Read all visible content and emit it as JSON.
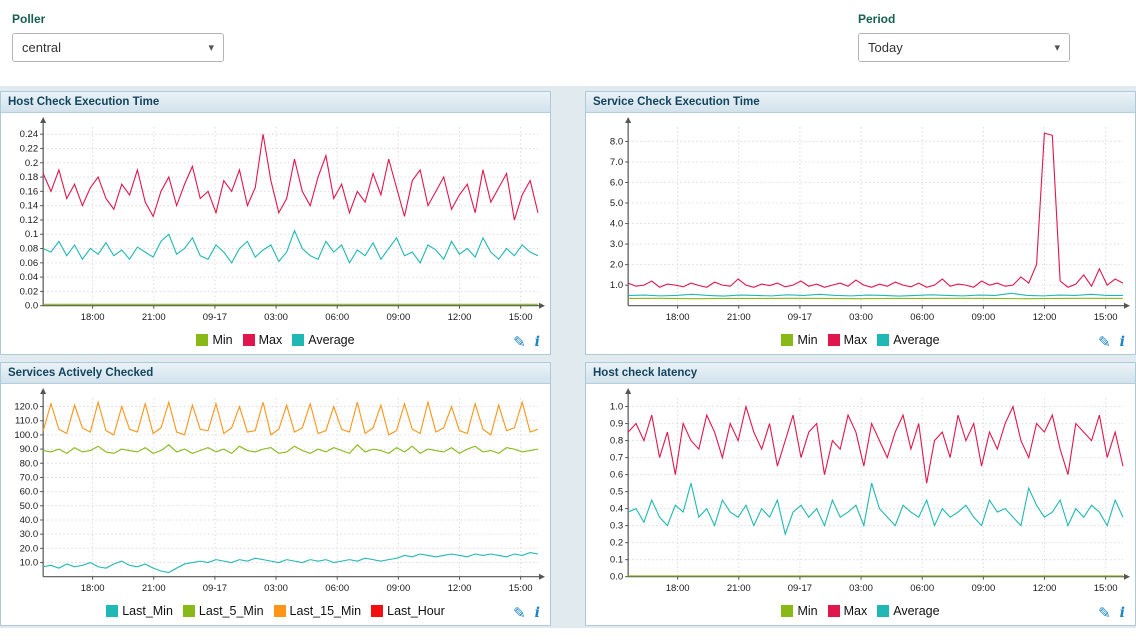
{
  "filters": {
    "poller": {
      "label": "Poller",
      "value": "central"
    },
    "period": {
      "label": "Period",
      "value": "Today"
    }
  },
  "icons": {
    "edit": "✎",
    "info": "i",
    "chevron": "▾"
  },
  "chart_data": [
    {
      "type": "line",
      "title": "Host Check Execution Time",
      "xtick_labels": [
        "18:00",
        "21:00",
        "09-17",
        "03:00",
        "06:00",
        "09:00",
        "12:00",
        "15:00"
      ],
      "ytick_values": [
        0,
        0.02,
        0.04,
        0.06,
        0.08,
        0.1,
        0.12,
        0.14,
        0.16,
        0.18,
        0.2,
        0.22,
        0.24
      ],
      "ytick_labels": [
        "0.0",
        "0.02",
        "0.04",
        "0.06",
        "0.08",
        "0.1",
        "0.12",
        "0.14",
        "0.16",
        "0.18",
        "0.2",
        "0.22",
        "0.24"
      ],
      "ylim": [
        0,
        0.25
      ],
      "grid": true,
      "legend_position": "bottom",
      "series": [
        {
          "name": "Min",
          "color": "#88b917",
          "values": [
            0.002,
            0.002
          ]
        },
        {
          "name": "Max",
          "color": "#e0174c",
          "values": [
            0.185,
            0.16,
            0.19,
            0.15,
            0.17,
            0.14,
            0.165,
            0.18,
            0.15,
            0.135,
            0.17,
            0.155,
            0.19,
            0.145,
            0.125,
            0.16,
            0.18,
            0.14,
            0.17,
            0.195,
            0.15,
            0.16,
            0.13,
            0.175,
            0.16,
            0.19,
            0.14,
            0.165,
            0.24,
            0.175,
            0.13,
            0.15,
            0.205,
            0.16,
            0.14,
            0.18,
            0.21,
            0.15,
            0.17,
            0.13,
            0.16,
            0.145,
            0.185,
            0.155,
            0.205,
            0.165,
            0.125,
            0.175,
            0.19,
            0.14,
            0.16,
            0.18,
            0.135,
            0.155,
            0.17,
            0.13,
            0.19,
            0.145,
            0.165,
            0.185,
            0.12,
            0.155,
            0.175,
            0.13
          ]
        },
        {
          "name": "Average",
          "color": "#20b8b4",
          "values": [
            0.08,
            0.075,
            0.09,
            0.07,
            0.085,
            0.065,
            0.08,
            0.072,
            0.088,
            0.07,
            0.078,
            0.065,
            0.082,
            0.075,
            0.068,
            0.09,
            0.1,
            0.072,
            0.08,
            0.095,
            0.07,
            0.065,
            0.085,
            0.075,
            0.06,
            0.08,
            0.09,
            0.068,
            0.078,
            0.085,
            0.062,
            0.075,
            0.105,
            0.08,
            0.07,
            0.065,
            0.09,
            0.075,
            0.085,
            0.06,
            0.078,
            0.07,
            0.088,
            0.065,
            0.08,
            0.095,
            0.07,
            0.075,
            0.06,
            0.085,
            0.078,
            0.065,
            0.09,
            0.072,
            0.08,
            0.068,
            0.095,
            0.075,
            0.065,
            0.08,
            0.07,
            0.085,
            0.075,
            0.07
          ]
        }
      ]
    },
    {
      "type": "line",
      "title": "Service Check Execution Time",
      "xtick_labels": [
        "18:00",
        "21:00",
        "09-17",
        "03:00",
        "06:00",
        "09:00",
        "12:00",
        "15:00"
      ],
      "ytick_values": [
        1,
        2,
        3,
        4,
        5,
        6,
        7,
        8
      ],
      "ytick_labels": [
        "1.0",
        "2.0",
        "3.0",
        "4.0",
        "5.0",
        "6.0",
        "7.0",
        "8.0"
      ],
      "ylim": [
        0,
        8.7
      ],
      "grid": true,
      "legend_position": "bottom",
      "series": [
        {
          "name": "Min",
          "color": "#88b917",
          "values": [
            0.35,
            0.36,
            0.34,
            0.35,
            0.35,
            0.36,
            0.35,
            0.34,
            0.35,
            0.35,
            0.36,
            0.35,
            0.34,
            0.35,
            0.36,
            0.35
          ]
        },
        {
          "name": "Max",
          "color": "#e0174c",
          "values": [
            1.1,
            0.95,
            1.0,
            1.2,
            0.9,
            1.05,
            1.0,
            0.92,
            1.1,
            0.98,
            0.9,
            1.15,
            1.0,
            0.95,
            1.3,
            1.0,
            0.9,
            1.05,
            0.98,
            1.1,
            0.92,
            1.0,
            1.2,
            0.95,
            1.05,
            0.9,
            1.0,
            1.1,
            0.95,
            1.25,
            1.0,
            0.9,
            1.05,
            0.95,
            1.15,
            1.0,
            0.92,
            1.1,
            0.9,
            1.0,
            1.3,
            0.95,
            1.05,
            1.0,
            0.9,
            1.2,
            1.0,
            1.1,
            0.95,
            1.0,
            1.4,
            1.1,
            2.0,
            8.4,
            8.3,
            1.2,
            0.9,
            1.05,
            1.5,
            0.95,
            1.8,
            1.0,
            1.3,
            1.1
          ]
        },
        {
          "name": "Average",
          "color": "#20b8b4",
          "values": [
            0.5,
            0.52,
            0.48,
            0.5,
            0.55,
            0.5,
            0.47,
            0.52,
            0.5,
            0.48,
            0.53,
            0.5,
            0.55,
            0.5,
            0.48,
            0.52,
            0.5,
            0.47,
            0.5,
            0.53,
            0.5,
            0.48,
            0.52,
            0.5,
            0.6,
            0.5,
            0.48,
            0.52,
            0.5,
            0.55,
            0.5,
            0.5
          ]
        }
      ]
    },
    {
      "type": "line",
      "title": "Services Actively Checked",
      "xtick_labels": [
        "18:00",
        "21:00",
        "09-17",
        "03:00",
        "06:00",
        "09:00",
        "12:00",
        "15:00"
      ],
      "ytick_values": [
        10,
        20,
        30,
        40,
        50,
        60,
        70,
        80,
        90,
        100,
        110,
        120
      ],
      "ytick_labels": [
        "10.0",
        "20.0",
        "30.0",
        "40.0",
        "50.0",
        "60.0",
        "70.0",
        "80.0",
        "90.0",
        "100.0",
        "110.0",
        "120.0"
      ],
      "ylim": [
        0,
        126
      ],
      "grid": true,
      "legend_position": "bottom",
      "series": [
        {
          "name": "Last_Min",
          "color": "#20b8b4",
          "values": [
            7,
            8,
            6,
            9,
            7,
            8,
            10,
            7,
            6,
            9,
            11,
            8,
            7,
            9,
            6,
            4,
            3,
            6,
            9,
            10,
            11,
            10,
            12,
            11,
            10,
            12,
            11,
            13,
            12,
            11,
            10,
            12,
            11,
            10,
            12,
            11,
            12,
            10,
            11,
            12,
            11,
            13,
            12,
            11,
            12,
            13,
            15,
            14,
            16,
            15,
            14,
            15,
            16,
            15,
            14,
            16,
            15,
            16,
            15,
            14,
            16,
            15,
            17,
            16
          ]
        },
        {
          "name": "Last_5_Min",
          "color": "#88b917",
          "values": [
            89,
            88,
            90,
            87,
            91,
            88,
            89,
            92,
            88,
            87,
            90,
            89,
            88,
            91,
            87,
            89,
            93,
            88,
            90,
            87,
            89,
            91,
            88,
            90,
            87,
            92,
            89,
            88,
            90,
            91,
            87,
            88,
            92,
            89,
            87,
            90,
            88,
            91,
            89,
            87,
            93,
            88,
            90,
            89,
            87,
            91,
            88,
            92,
            87,
            90,
            89,
            88,
            91,
            87,
            90,
            92,
            88,
            89,
            87,
            91,
            90,
            88,
            89,
            90
          ]
        },
        {
          "name": "Last_15_Min",
          "color": "#ff9417",
          "values": [
            103,
            122,
            104,
            101,
            121,
            105,
            102,
            123,
            103,
            100,
            120,
            104,
            102,
            122,
            101,
            105,
            123,
            102,
            100,
            121,
            104,
            103,
            122,
            101,
            105,
            120,
            102,
            103,
            123,
            100,
            104,
            121,
            102,
            105,
            122,
            101,
            103,
            120,
            104,
            102,
            123,
            101,
            105,
            121,
            100,
            103,
            122,
            104,
            101,
            123,
            102,
            105,
            120,
            103,
            101,
            122,
            104,
            100,
            121,
            103,
            105,
            123,
            102,
            104
          ]
        },
        {
          "name": "Last_Hour",
          "color": "#f30f0f",
          "values": []
        }
      ]
    },
    {
      "type": "line",
      "title": "Host check latency",
      "xtick_labels": [
        "18:00",
        "21:00",
        "09-17",
        "03:00",
        "06:00",
        "09:00",
        "12:00",
        "15:00"
      ],
      "ytick_values": [
        0,
        0.1,
        0.2,
        0.3,
        0.4,
        0.5,
        0.6,
        0.7,
        0.8,
        0.9,
        1.0
      ],
      "ytick_labels": [
        "0.0",
        "0.1",
        "0.2",
        "0.3",
        "0.4",
        "0.5",
        "0.6",
        "0.7",
        "0.8",
        "0.9",
        "1.0"
      ],
      "ylim": [
        0,
        1.05
      ],
      "grid": true,
      "legend_position": "bottom",
      "series": [
        {
          "name": "Min",
          "color": "#88b917",
          "values": [
            0.005,
            0.005
          ]
        },
        {
          "name": "Max",
          "color": "#e0174c",
          "values": [
            0.85,
            0.9,
            0.8,
            0.95,
            0.7,
            0.85,
            0.6,
            0.9,
            0.8,
            0.75,
            0.95,
            0.85,
            0.7,
            0.9,
            0.8,
            1.0,
            0.85,
            0.75,
            0.9,
            0.65,
            0.8,
            0.95,
            0.7,
            0.85,
            0.9,
            0.6,
            0.8,
            0.75,
            0.95,
            0.85,
            0.65,
            0.9,
            0.8,
            0.7,
            0.85,
            0.95,
            0.75,
            0.9,
            0.55,
            0.8,
            0.85,
            0.7,
            0.95,
            0.8,
            0.9,
            0.65,
            0.85,
            0.75,
            0.9,
            1.0,
            0.8,
            0.7,
            0.9,
            0.85,
            0.95,
            0.75,
            0.6,
            0.9,
            0.85,
            0.8,
            0.95,
            0.7,
            0.85,
            0.65
          ]
        },
        {
          "name": "Average",
          "color": "#20b8b4",
          "values": [
            0.38,
            0.4,
            0.32,
            0.45,
            0.35,
            0.3,
            0.42,
            0.38,
            0.55,
            0.35,
            0.4,
            0.3,
            0.45,
            0.38,
            0.35,
            0.42,
            0.3,
            0.4,
            0.35,
            0.45,
            0.25,
            0.38,
            0.42,
            0.35,
            0.4,
            0.3,
            0.45,
            0.35,
            0.38,
            0.42,
            0.3,
            0.55,
            0.4,
            0.35,
            0.3,
            0.42,
            0.38,
            0.35,
            0.45,
            0.3,
            0.4,
            0.35,
            0.38,
            0.42,
            0.35,
            0.3,
            0.45,
            0.38,
            0.4,
            0.35,
            0.3,
            0.52,
            0.42,
            0.35,
            0.38,
            0.45,
            0.3,
            0.4,
            0.35,
            0.42,
            0.38,
            0.3,
            0.45,
            0.35
          ]
        }
      ]
    }
  ]
}
